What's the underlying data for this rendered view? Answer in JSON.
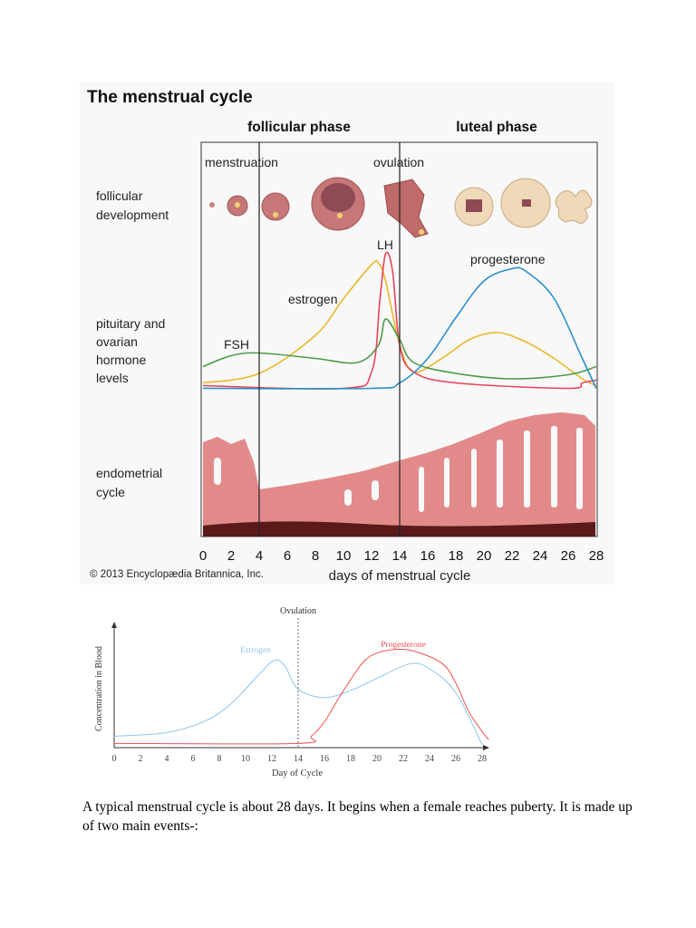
{
  "figure1": {
    "title": "The menstrual cycle",
    "phases": [
      "follicular phase",
      "luteal phase"
    ],
    "events": [
      "menstruation",
      "ovulation"
    ],
    "row_labels": {
      "follicular": [
        "follicular",
        "development"
      ],
      "hormones": [
        "pituitary and",
        "ovarian",
        "hormone",
        "levels"
      ],
      "endometrial": [
        "endometrial",
        "cycle"
      ]
    },
    "copyright": "© 2013 Encyclopædia Britannica, Inc.",
    "xlabel": "days of menstrual cycle"
  },
  "chart_data": [
    {
      "type": "line",
      "xlabel": "days of menstrual cycle",
      "xticks": [
        0,
        2,
        4,
        6,
        8,
        10,
        12,
        14,
        16,
        18,
        20,
        22,
        24,
        26,
        28
      ],
      "xlim": [
        0,
        28
      ],
      "grid": false,
      "vlines": [
        {
          "x": 4,
          "label": "menstruation"
        },
        {
          "x": 14,
          "label": "ovulation"
        }
      ],
      "series": [
        {
          "name": "estrogen",
          "color": "#e8b82c",
          "x": [
            0,
            4,
            8,
            10,
            12,
            12.5,
            13,
            14,
            15,
            17,
            19,
            21,
            23,
            25,
            27,
            28
          ],
          "y": [
            5,
            12,
            40,
            67,
            92,
            93,
            80,
            33,
            13,
            23,
            37,
            42,
            35,
            23,
            8,
            3
          ]
        },
        {
          "name": "LH",
          "color": "#e8435a",
          "x": [
            0,
            10,
            12,
            12.6,
            13,
            13.5,
            14,
            15,
            18,
            26,
            27,
            28
          ],
          "y": [
            3,
            1,
            13,
            67,
            100,
            87,
            33,
            13,
            5,
            1,
            5,
            7
          ]
        },
        {
          "name": "FSH",
          "color": "#4e9a47",
          "x": [
            0,
            2,
            4,
            8,
            11,
            12.5,
            13,
            14,
            15,
            18,
            22,
            26,
            28
          ],
          "y": [
            17,
            25,
            27,
            23,
            20,
            33,
            52,
            37,
            20,
            12,
            8,
            11,
            17
          ]
        },
        {
          "name": "progesterone",
          "color": "#2b8fc9",
          "x": [
            0,
            12,
            14,
            16,
            18,
            20,
            22,
            23,
            25,
            27,
            28
          ],
          "y": [
            1,
            1,
            5,
            23,
            53,
            80,
            89,
            87,
            67,
            23,
            1
          ]
        }
      ]
    },
    {
      "type": "line",
      "xlabel": "Day of Cycle",
      "ylabel": "Concentration in Blood",
      "xticks": [
        0,
        2,
        4,
        6,
        8,
        10,
        12,
        14,
        16,
        18,
        20,
        22,
        24,
        26,
        28
      ],
      "xlim": [
        0,
        28.5
      ],
      "grid": false,
      "vlines": [
        {
          "x": 14,
          "label": "Ovulation"
        }
      ],
      "series": [
        {
          "name": "Estrogen",
          "color": "#8ec3ea",
          "x": [
            0,
            4,
            7,
            9,
            11,
            12.2,
            13,
            14,
            16,
            18,
            20,
            22.5,
            24,
            26,
            28
          ],
          "y": [
            8,
            11,
            21,
            36,
            59,
            71,
            66,
            47,
            40,
            46,
            56,
            68,
            64,
            44,
            1
          ]
        },
        {
          "name": "Progesterone",
          "color": "#ef5050",
          "x": [
            0,
            14,
            15,
            16,
            17,
            18,
            19,
            20,
            21.5,
            23,
            25,
            26,
            27,
            28,
            28.5
          ],
          "y": [
            2,
            2,
            8,
            20,
            38,
            55,
            70,
            77,
            80,
            78,
            68,
            52,
            28,
            12,
            5
          ]
        }
      ]
    }
  ],
  "paragraph": "A typical menstrual cycle is about 28 days. It begins when a female reaches puberty. It is made up of two main events-:"
}
